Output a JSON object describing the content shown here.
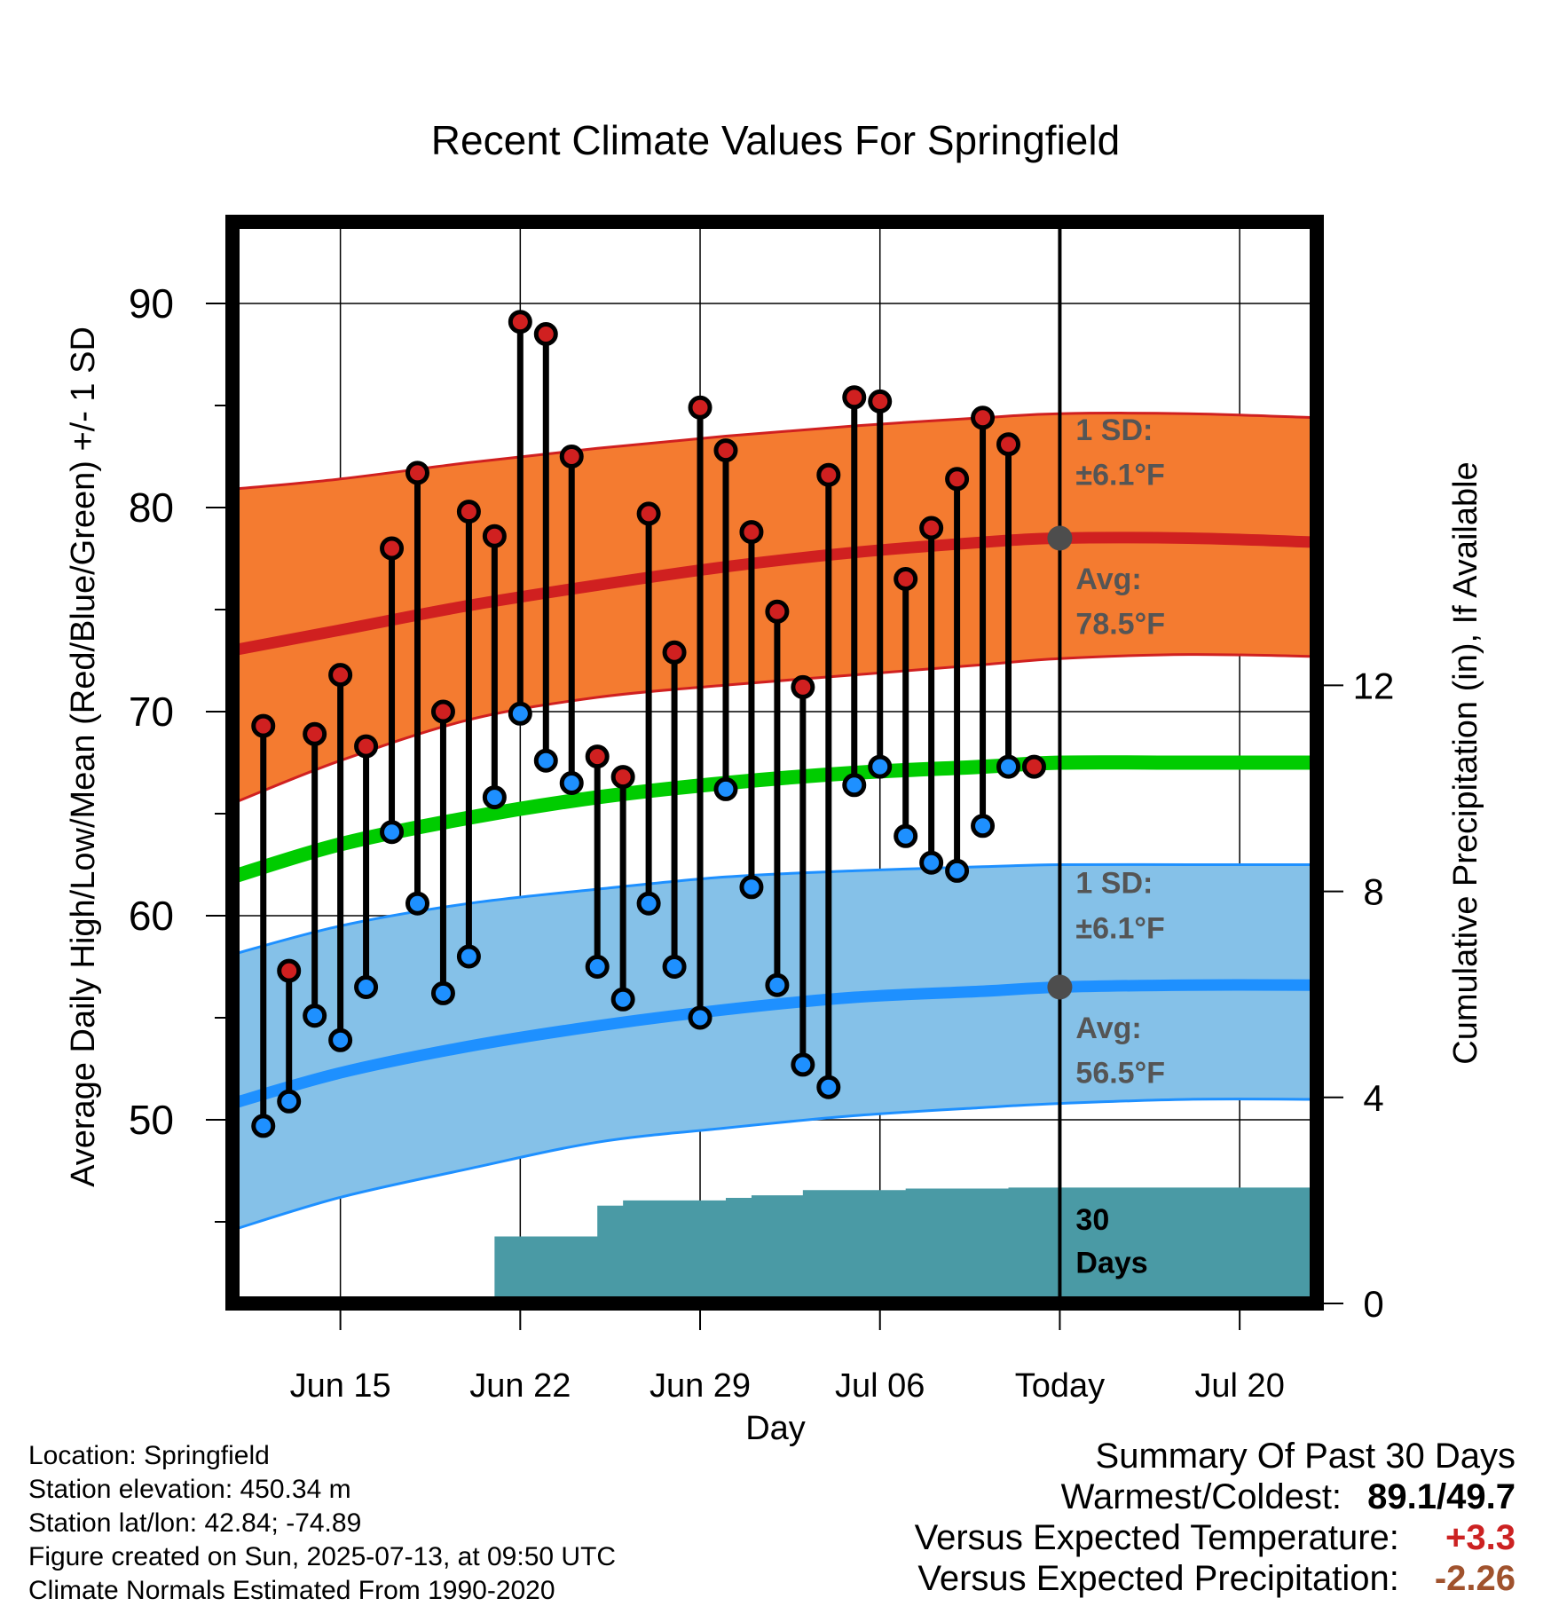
{
  "chart_data": {
    "type": "line",
    "title": "Recent Climate Values For Springfield",
    "xlabel": "Day",
    "ylabel": "Average Daily High/Low/Mean (Red/Blue/Green) +/- 1 SD",
    "y2label": "Cumulative Precipitation (in), If Available",
    "ylim": [
      41,
      94
    ],
    "y2lim": [
      0,
      21
    ],
    "x_ticks": [
      {
        "day": 15,
        "label": "Jun 15"
      },
      {
        "day": 22,
        "label": "Jun 22"
      },
      {
        "day": 29,
        "label": "Jun 29"
      },
      {
        "day": 36,
        "label": "Jul 06"
      },
      {
        "day": 43,
        "label": "Today"
      },
      {
        "day": 50,
        "label": "Jul 20"
      }
    ],
    "y_ticks": [
      50,
      60,
      70,
      80,
      90
    ],
    "y2_ticks": [
      0,
      4,
      8,
      12
    ],
    "xlim": [
      10.8,
      53
    ],
    "today_day": 43,
    "grid": true,
    "observations": {
      "days": [
        12,
        13,
        14,
        15,
        16,
        17,
        18,
        19,
        20,
        21,
        22,
        23,
        24,
        25,
        26,
        27,
        28,
        29,
        30,
        31,
        32,
        33,
        34,
        35,
        36,
        37,
        38,
        39,
        40,
        41,
        42
      ],
      "highs": [
        69.3,
        57.3,
        68.9,
        71.8,
        68.3,
        78.0,
        81.7,
        70.0,
        79.8,
        78.6,
        89.1,
        88.5,
        82.5,
        67.8,
        66.8,
        79.7,
        72.9,
        84.9,
        82.8,
        78.8,
        74.9,
        71.2,
        81.6,
        85.4,
        85.2,
        76.5,
        79.0,
        81.4,
        84.4,
        83.1,
        67.3
      ],
      "lows": [
        49.7,
        50.9,
        55.1,
        53.9,
        56.5,
        64.1,
        60.6,
        56.2,
        58.0,
        65.8,
        69.9,
        67.6,
        66.5,
        57.5,
        55.9,
        60.6,
        57.5,
        55.0,
        66.2,
        61.4,
        56.6,
        52.7,
        51.6,
        66.4,
        67.3,
        63.9,
        62.6,
        62.2,
        64.4,
        67.3,
        null
      ]
    },
    "normals": {
      "days": [
        10.8,
        15,
        20,
        25,
        30,
        35,
        40,
        43,
        48,
        53
      ],
      "high_avg": [
        73.0,
        74.0,
        75.2,
        76.2,
        77.1,
        77.8,
        78.3,
        78.5,
        78.5,
        78.3
      ],
      "high_sd_upper": [
        80.9,
        81.4,
        82.2,
        82.9,
        83.5,
        84.0,
        84.4,
        84.6,
        84.6,
        84.4
      ],
      "high_sd_lower": [
        65.5,
        67.6,
        69.6,
        70.7,
        71.3,
        71.8,
        72.3,
        72.6,
        72.8,
        72.7
      ],
      "mean_avg": [
        61.9,
        63.5,
        64.8,
        65.8,
        66.5,
        67.0,
        67.3,
        67.5,
        67.5,
        67.5
      ],
      "low_avg": [
        50.8,
        52.3,
        53.6,
        54.6,
        55.4,
        56.0,
        56.3,
        56.5,
        56.6,
        56.6
      ],
      "low_sd_upper": [
        58.1,
        59.5,
        60.6,
        61.3,
        61.9,
        62.2,
        62.4,
        62.5,
        62.5,
        62.5
      ],
      "low_sd_lower": [
        44.6,
        46.2,
        47.6,
        48.9,
        49.6,
        50.2,
        50.6,
        50.8,
        51.0,
        51.0
      ]
    },
    "precipitation": {
      "days": [
        10.8,
        17,
        18,
        19,
        20,
        21,
        22,
        23,
        24,
        25,
        26,
        27,
        28,
        29,
        30,
        31,
        32,
        33,
        34,
        35,
        36,
        37,
        38,
        39,
        40,
        41,
        42,
        43,
        53
      ],
      "cumulative": [
        0,
        0,
        0.05,
        0.1,
        0.1,
        1.3,
        1.3,
        1.3,
        1.3,
        1.9,
        2.0,
        2.0,
        2.0,
        2.0,
        2.05,
        2.1,
        2.1,
        2.2,
        2.2,
        2.2,
        2.2,
        2.23,
        2.23,
        2.23,
        2.23,
        2.25,
        2.25,
        2.25,
        2.25
      ]
    },
    "annotations": {
      "high_sd_label_1": "1 SD:",
      "high_sd_label_2": "±6.1°F",
      "high_avg_label_1": "Avg:",
      "high_avg_label_2": "78.5°F",
      "low_sd_label_1": "1 SD:",
      "low_sd_label_2": "±6.1°F",
      "low_avg_label_1": "Avg:",
      "low_avg_label_2": "56.5°F",
      "precip_label_1": "30",
      "precip_label_2": "Days"
    },
    "colors": {
      "high_band": "#f47b30",
      "high_line": "#d02020",
      "low_band": "#85c1e8",
      "low_line": "#1e90ff",
      "mean_line": "#00cc00",
      "precip": "#4a9aa5",
      "high_marker": "#d02020",
      "low_marker": "#1e90ff",
      "today_marker": "#4d4d4d",
      "annotation_text": "#555555"
    }
  },
  "info": {
    "location": "Location: Springfield",
    "elevation": "Station elevation: 450.34 m",
    "latlon": "Station lat/lon: 42.84; -74.89",
    "created": "Figure created on Sun, 2025-07-13, at 09:50 UTC",
    "normals": "Climate Normals Estimated From 1990-2020"
  },
  "summary": {
    "title": "Summary Of Past 30 Days",
    "warm_cold_label": "Warmest/Coldest:",
    "warm_cold_value": "89.1/49.7",
    "temp_label": "Versus Expected Temperature:",
    "temp_value": "+3.3",
    "temp_color": "#cc2222",
    "precip_label": "Versus Expected Precipitation:",
    "precip_value": "-2.26",
    "precip_color": "#a0522d"
  }
}
